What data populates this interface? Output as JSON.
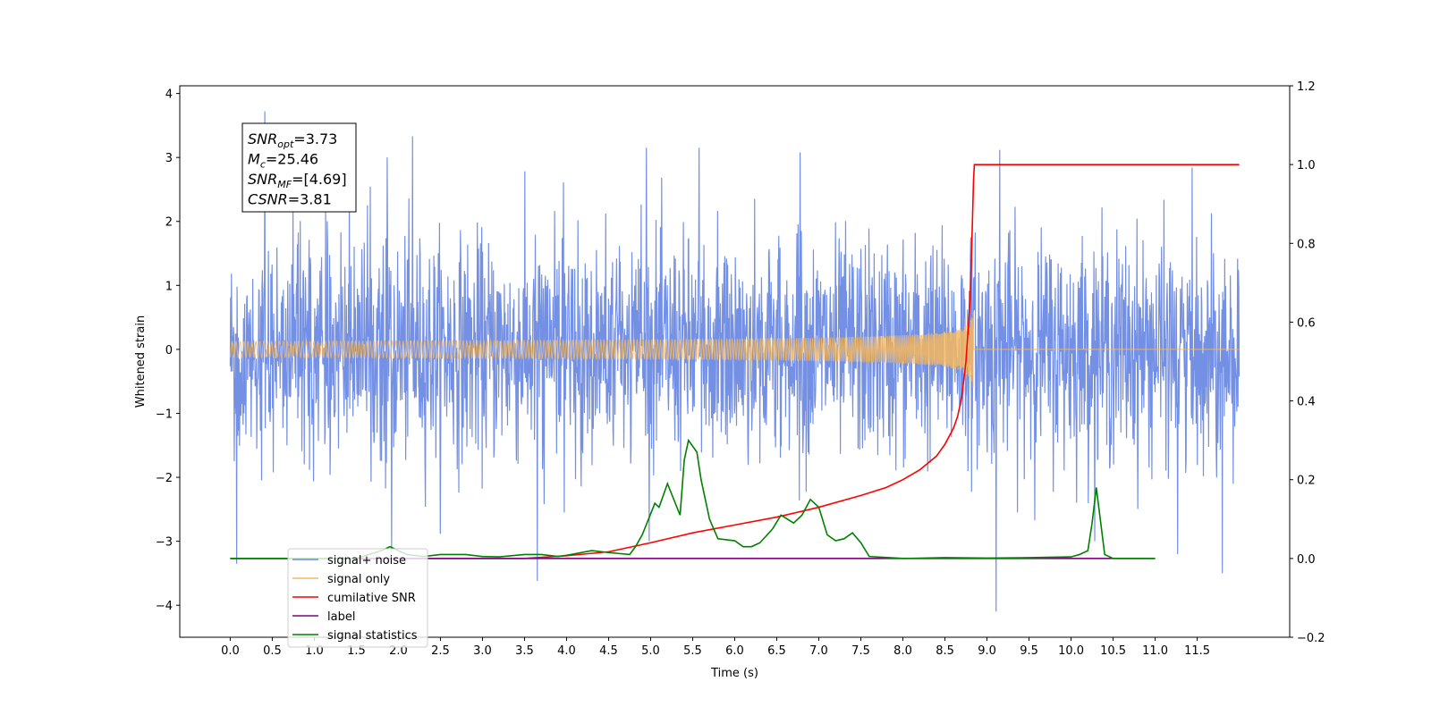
{
  "chart_data": {
    "type": "line",
    "xlabel": "Time (s)",
    "ylabel": "Whitened strain",
    "xlim": [
      -0.6,
      12.6
    ],
    "ylim_left": [
      -4.5,
      4.12
    ],
    "ylim_right": [
      -0.2,
      1.2
    ],
    "x_ticks": [
      "0.0",
      "0.5",
      "1.0",
      "1.5",
      "2.0",
      "2.5",
      "3.0",
      "3.5",
      "4.0",
      "4.5",
      "5.0",
      "5.5",
      "6.0",
      "6.5",
      "7.0",
      "7.5",
      "8.0",
      "8.5",
      "9.0",
      "9.5",
      "10.0",
      "10.5",
      "11.0",
      "11.5"
    ],
    "y_ticks_left": [
      "−4",
      "−3",
      "−2",
      "−1",
      "0",
      "1",
      "2",
      "3",
      "4"
    ],
    "y_ticks_right": [
      "−0.2",
      "0.0",
      "0.2",
      "0.4",
      "0.6",
      "0.8",
      "1.0",
      "1.2"
    ],
    "annotations": [
      {
        "main": "SNR",
        "sub": "opt",
        "rest": "=3.73"
      },
      {
        "main": "M",
        "sub": "c",
        "rest": "=25.46"
      },
      {
        "main": "SNR",
        "sub": "MF",
        "rest": "=[4.69]"
      },
      {
        "main": "CSNR",
        "sub": "",
        "rest": "=3.81"
      }
    ],
    "legend_placement": "lower-left",
    "series": [
      {
        "name": "signal+ noise",
        "axis": "left",
        "color": "#6c8ae4",
        "x_range": [
          0.0,
          12.0
        ],
        "sigma": 0.85,
        "spikes": [
          [
            0.41,
            3.72
          ],
          [
            0.08,
            -3.35
          ],
          [
            1.92,
            -3.18
          ],
          [
            2.17,
            3.33
          ],
          [
            3.65,
            -3.62
          ],
          [
            9.11,
            -4.1
          ],
          [
            9.15,
            3.12
          ],
          [
            11.8,
            -3.5
          ],
          [
            11.27,
            -3.2
          ],
          [
            5.58,
            3.15
          ],
          [
            4.95,
            3.15
          ],
          [
            6.78,
            3.08
          ]
        ]
      },
      {
        "name": "signal only",
        "axis": "left",
        "color": "#f5b860",
        "chirp_end": 8.84,
        "peak_amp": 0.75
      },
      {
        "name": "cumilative SNR",
        "axis": "right",
        "color": "#ff0000",
        "x": [
          0.0,
          3.5,
          4.0,
          4.5,
          5.0,
          5.5,
          6.0,
          6.5,
          7.0,
          7.5,
          7.8,
          8.0,
          8.2,
          8.4,
          8.5,
          8.6,
          8.65,
          8.7,
          8.75,
          8.8,
          8.82,
          8.84,
          8.85,
          12.0
        ],
        "y": [
          0.0,
          0.0,
          0.007,
          0.017,
          0.04,
          0.065,
          0.085,
          0.105,
          0.13,
          0.16,
          0.18,
          0.2,
          0.225,
          0.26,
          0.29,
          0.33,
          0.36,
          0.41,
          0.5,
          0.66,
          0.8,
          0.96,
          1.0,
          1.0
        ]
      },
      {
        "name": "label",
        "axis": "right",
        "color": "#800080",
        "x": [
          0.0,
          11.0
        ],
        "y": [
          0.0,
          0.0
        ]
      },
      {
        "name": "signal statistics",
        "axis": "right",
        "color": "#008000",
        "x": [
          0.0,
          1.5,
          1.8,
          1.9,
          2.1,
          2.3,
          2.5,
          2.8,
          3.0,
          3.2,
          3.5,
          3.7,
          3.9,
          4.0,
          4.3,
          4.5,
          4.75,
          4.82,
          4.9,
          5.05,
          5.1,
          5.2,
          5.35,
          5.4,
          5.45,
          5.55,
          5.6,
          5.7,
          5.8,
          6.0,
          6.1,
          6.2,
          6.3,
          6.45,
          6.55,
          6.7,
          6.8,
          6.9,
          7.0,
          7.1,
          7.2,
          7.3,
          7.4,
          7.5,
          7.6,
          8.0,
          8.5,
          9.0,
          9.5,
          10.0,
          10.1,
          10.2,
          10.25,
          10.3,
          10.4,
          10.5,
          11.0
        ],
        "y": [
          0.0,
          0.0,
          0.02,
          0.03,
          0.01,
          0.005,
          0.01,
          0.01,
          0.005,
          0.004,
          0.01,
          0.01,
          0.005,
          0.008,
          0.02,
          0.015,
          0.01,
          0.03,
          0.06,
          0.14,
          0.13,
          0.19,
          0.11,
          0.25,
          0.3,
          0.27,
          0.2,
          0.1,
          0.05,
          0.045,
          0.03,
          0.03,
          0.04,
          0.075,
          0.11,
          0.09,
          0.11,
          0.15,
          0.13,
          0.06,
          0.045,
          0.05,
          0.065,
          0.04,
          0.005,
          0.0,
          0.002,
          0.001,
          0.002,
          0.004,
          0.01,
          0.02,
          0.09,
          0.18,
          0.01,
          0.0,
          0.0
        ]
      }
    ]
  }
}
